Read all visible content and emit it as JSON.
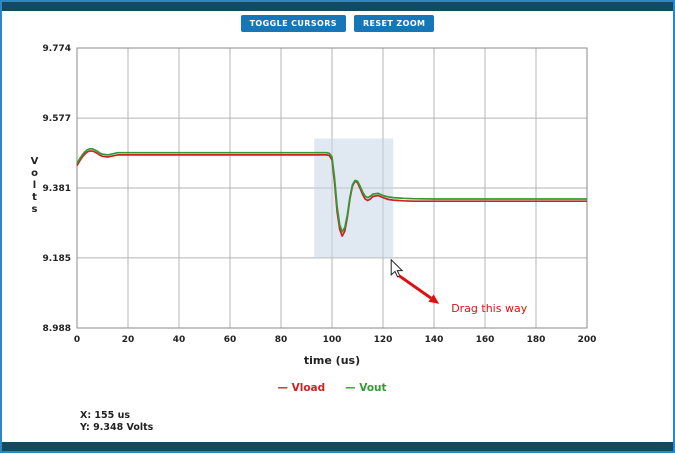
{
  "theme": {
    "border_color": "#2e86c8",
    "bar_color": "#134a5f",
    "button_color": "#1677b8"
  },
  "toolbar": {
    "toggle_cursors": "TOGGLE CURSORS",
    "reset_zoom": "RESET ZOOM"
  },
  "status": {
    "x_readout": "X: 155 us",
    "y_readout": "Y: 9.348 Volts"
  },
  "chart_data": {
    "type": "line",
    "title": "",
    "xlabel": "time (us)",
    "ylabel": "Volts",
    "xlim": [
      0,
      200
    ],
    "ylim": [
      8.988,
      9.774
    ],
    "xticks": [
      0,
      20,
      40,
      60,
      80,
      100,
      120,
      140,
      160,
      180,
      200
    ],
    "yticks": [
      9.774,
      9.577,
      9.381,
      9.185,
      8.988
    ],
    "grid": true,
    "legend_position": "bottom",
    "x": [
      0,
      1,
      2,
      3,
      4,
      5,
      6,
      7,
      8,
      9,
      10,
      12,
      14,
      16,
      20,
      40,
      60,
      80,
      90,
      98,
      99,
      100,
      101,
      102,
      103,
      104,
      105,
      106,
      107,
      108,
      109,
      110,
      111,
      112,
      113,
      114,
      115,
      116,
      118,
      120,
      122,
      124,
      128,
      132,
      140,
      160,
      180,
      200
    ],
    "series": [
      {
        "name": "Vload",
        "color": "#cc2222",
        "y": [
          9.444,
          9.456,
          9.467,
          9.476,
          9.482,
          9.485,
          9.485,
          9.482,
          9.478,
          9.473,
          9.47,
          9.468,
          9.471,
          9.474,
          9.474,
          9.474,
          9.474,
          9.474,
          9.474,
          9.474,
          9.472,
          9.46,
          9.395,
          9.315,
          9.265,
          9.246,
          9.26,
          9.298,
          9.35,
          9.386,
          9.4,
          9.396,
          9.38,
          9.363,
          9.35,
          9.346,
          9.35,
          9.357,
          9.36,
          9.354,
          9.349,
          9.347,
          9.345,
          9.344,
          9.344,
          9.344,
          9.344,
          9.344
        ]
      },
      {
        "name": "Vout",
        "color": "#339933",
        "y": [
          9.45,
          9.462,
          9.473,
          9.482,
          9.488,
          9.491,
          9.491,
          9.488,
          9.484,
          9.479,
          9.476,
          9.474,
          9.477,
          9.48,
          9.48,
          9.48,
          9.48,
          9.48,
          9.48,
          9.48,
          9.478,
          9.468,
          9.408,
          9.33,
          9.278,
          9.258,
          9.27,
          9.305,
          9.355,
          9.39,
          9.402,
          9.4,
          9.386,
          9.37,
          9.358,
          9.354,
          9.358,
          9.364,
          9.366,
          9.36,
          9.356,
          9.354,
          9.352,
          9.351,
          9.35,
          9.35,
          9.35,
          9.35
        ]
      }
    ],
    "selection_region": {
      "x0": 93,
      "x1": 124,
      "y0": 9.185,
      "y1": 9.52,
      "color": "#c7d6e8"
    },
    "annotation": {
      "text": "Drag this way",
      "color": "#dd1111"
    }
  }
}
